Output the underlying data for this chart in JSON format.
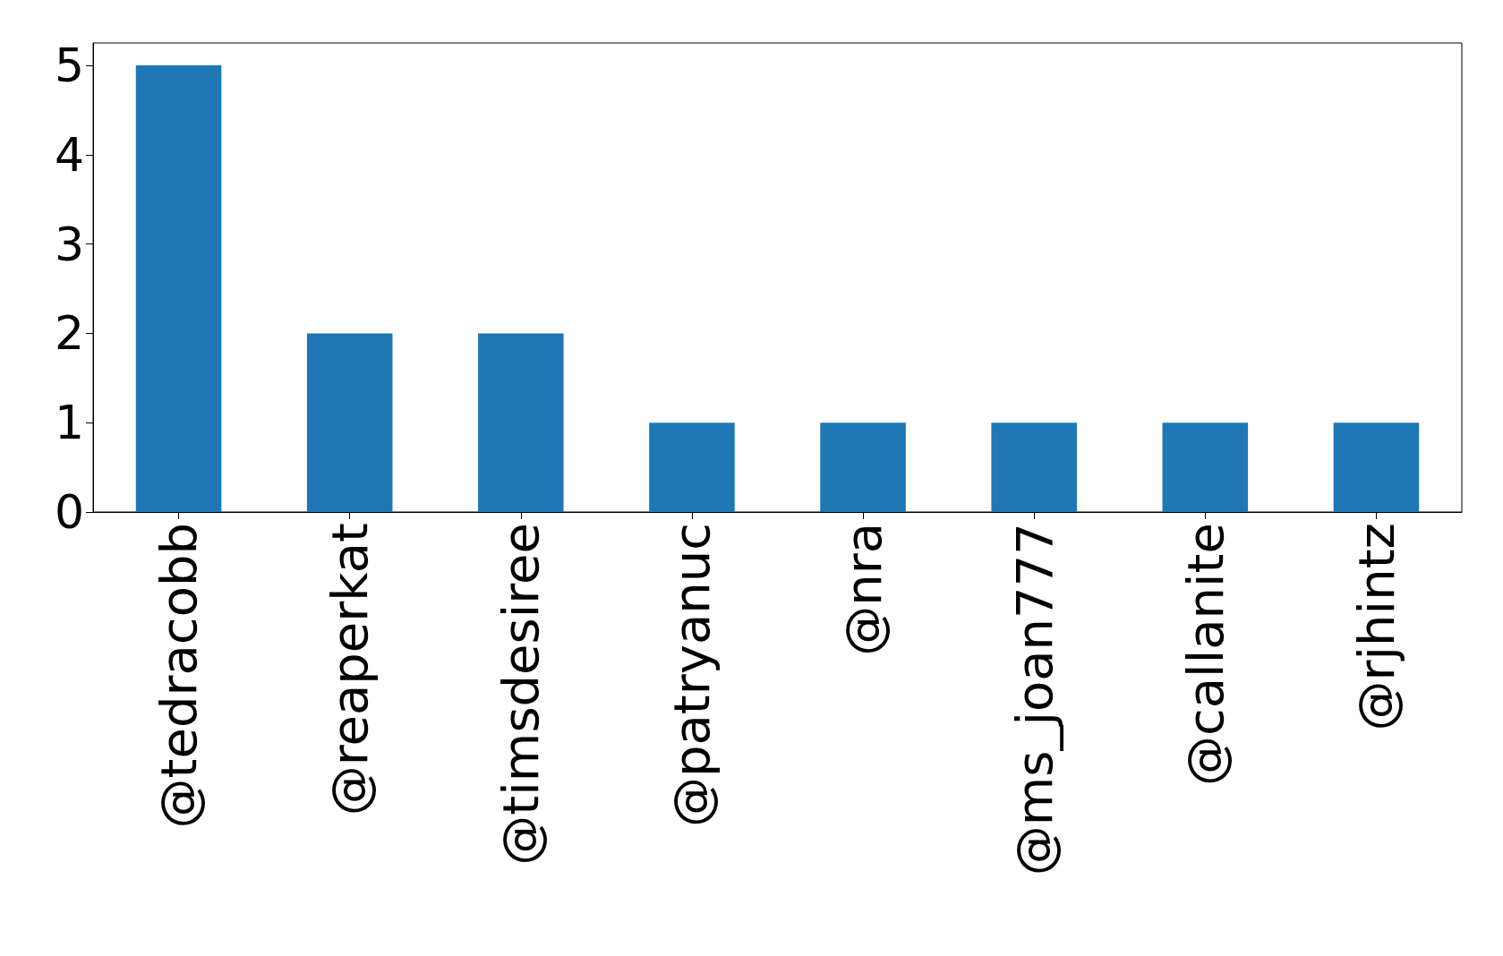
{
  "chart_data": {
    "type": "bar",
    "categories": [
      "@tedracobb",
      "@reaperkat",
      "@timsdesiree",
      "@patryanuc",
      "@nra",
      "@ms_joan777",
      "@callanite",
      "@rjhintz"
    ],
    "values": [
      5,
      2,
      2,
      1,
      1,
      1,
      1,
      1
    ],
    "color": "#1f77b4",
    "ylim": [
      0,
      5.25
    ],
    "yticks": [
      0,
      1,
      2,
      3,
      4,
      5
    ],
    "grid": false
  }
}
